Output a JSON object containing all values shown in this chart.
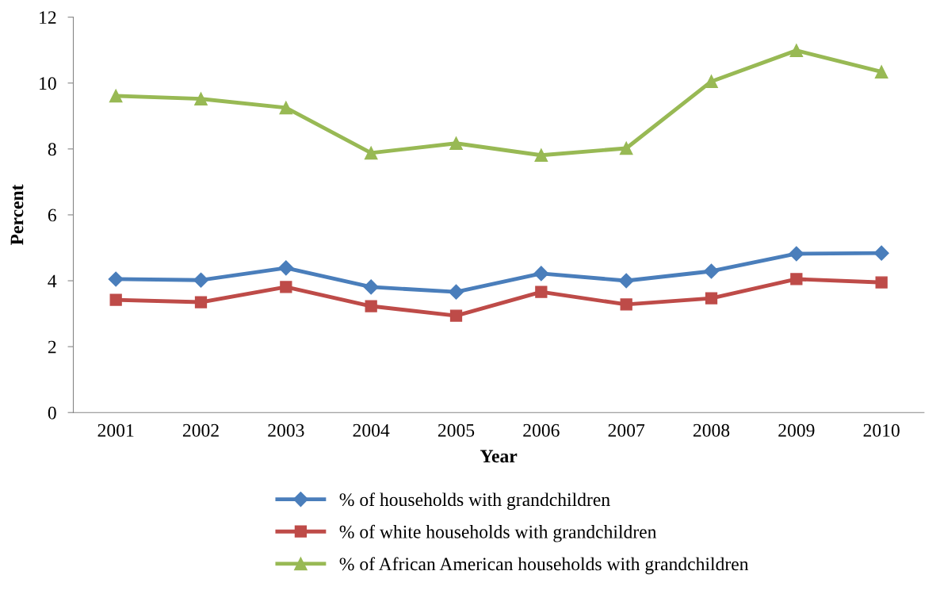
{
  "chart_data": {
    "type": "line",
    "xlabel": "Year",
    "ylabel": "Percent",
    "categories": [
      "2001",
      "2002",
      "2003",
      "2004",
      "2005",
      "2006",
      "2007",
      "2008",
      "2009",
      "2010"
    ],
    "ylim": [
      0,
      12
    ],
    "yticks": [
      0,
      2,
      4,
      6,
      8,
      10,
      12
    ],
    "grid": false,
    "legend": "bottom",
    "line_style": "solid",
    "series": [
      {
        "name": "% of households with grandchildren",
        "color": "#4a7ebb",
        "marker": "diamond",
        "values": [
          4.05,
          4.02,
          4.39,
          3.81,
          3.66,
          4.22,
          4.0,
          4.29,
          4.82,
          4.84
        ]
      },
      {
        "name": "% of white households with grandchildren",
        "color": "#be4b48",
        "marker": "square",
        "values": [
          3.42,
          3.35,
          3.81,
          3.23,
          2.94,
          3.66,
          3.28,
          3.47,
          4.05,
          3.95
        ]
      },
      {
        "name": "% of African American households with grandchildren",
        "color": "#98b954",
        "marker": "triangle",
        "values": [
          9.61,
          9.52,
          9.25,
          7.88,
          8.17,
          7.81,
          8.02,
          10.05,
          10.99,
          10.34
        ]
      }
    ]
  }
}
